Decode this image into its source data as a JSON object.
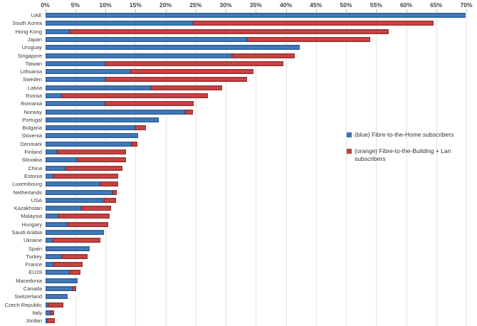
{
  "chart_data": {
    "type": "bar",
    "orientation": "horizontal",
    "stacked": true,
    "grid": true,
    "x_axis_position": "top",
    "xlim": [
      0,
      70
    ],
    "x_ticks": [
      "0%",
      "5%",
      "10%",
      "15%",
      "20%",
      "25%",
      "30%",
      "35%",
      "40%",
      "45%",
      "50%",
      "55%",
      "60%",
      "65%",
      "70%"
    ],
    "x_tick_values": [
      0,
      5,
      10,
      15,
      20,
      25,
      30,
      35,
      40,
      45,
      50,
      55,
      60,
      65,
      70
    ],
    "categories": [
      "UAE",
      "South Korea",
      "Hong Kong",
      "Japan",
      "Uruguay",
      "Singapore",
      "Taiwan",
      "Lithuania",
      "Sweden",
      "Latvia",
      "Russia",
      "Romania",
      "Norway",
      "Portugal",
      "Bulgaria",
      "Slovenia",
      "Denmark",
      "Finland",
      "Slovakia",
      "China",
      "Estonia",
      "Luxembourg",
      "Netherlands",
      "USA",
      "Kazakhstan",
      "Malaysia",
      "Hungary",
      "Saudi Arabia",
      "Ukraine",
      "Spain",
      "Turkey",
      "France",
      "EU28",
      "Macedonia",
      "Canada",
      "Switzerland",
      "Czech Republic",
      "Italy",
      "Jordan"
    ],
    "series": [
      {
        "name": "Fibre-to-the-Home subscribers",
        "color": "#3b72b2",
        "values": [
          69.9,
          24.5,
          4.1,
          33.6,
          42.3,
          31.1,
          10.0,
          14.1,
          10.0,
          17.6,
          2.7,
          9.9,
          23.2,
          18.9,
          15.0,
          15.4,
          14.4,
          2.0,
          5.3,
          3.4,
          1.3,
          9.2,
          11.2,
          9.8,
          6.0,
          2.2,
          3.7,
          9.7,
          1.2,
          7.4,
          2.8,
          1.3,
          3.9,
          5.4,
          4.5,
          3.7,
          0.5,
          0.9,
          0.3
        ]
      },
      {
        "name": "Fibre-to-the-Building + Lan subscribers",
        "color": "#c03c3c",
        "values": [
          0,
          40.0,
          53.0,
          20.4,
          0,
          10.4,
          29.6,
          20.5,
          23.5,
          11.8,
          24.4,
          14.8,
          1.3,
          0,
          1.7,
          0,
          0.9,
          11.4,
          8.1,
          9.4,
          10.8,
          2.9,
          0.7,
          2.0,
          5.0,
          8.5,
          6.8,
          0,
          8.0,
          0,
          4.2,
          4.9,
          1.9,
          0,
          0.7,
          0,
          2.5,
          0.6,
          1.3
        ]
      }
    ],
    "legend_position": "middle-right",
    "legend": [
      {
        "label": "(blue) Fibre-to-the-Home subscribers",
        "color": "#3b72b2"
      },
      {
        "label": "(orange) Fibre-to-the-Building + Lan subscribers",
        "color": "#c03c3c"
      }
    ]
  },
  "colors": {
    "ftth_blue": "#3b72b2",
    "fttb_red": "#c03c3c",
    "gridline": "#e4e4e4",
    "text": "#3a3a3a",
    "background": "#ffffff"
  }
}
